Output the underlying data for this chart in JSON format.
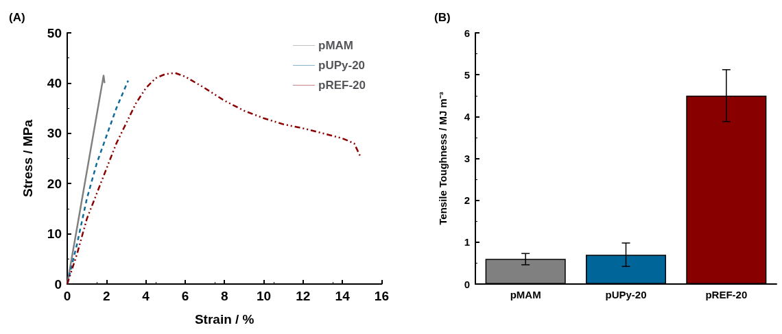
{
  "chart_data": [
    {
      "type": "line",
      "title": "(A)",
      "xlabel": "Strain / %",
      "ylabel": "Stress / MPa",
      "xlim": [
        0,
        16
      ],
      "xticks": [
        0,
        2,
        4,
        6,
        8,
        10,
        12,
        14,
        16
      ],
      "ylim": [
        0,
        50
      ],
      "yticks": [
        0,
        10,
        20,
        30,
        40,
        50
      ],
      "grid": false,
      "legend": "top right",
      "marker": "none",
      "series": [
        {
          "name": "pMAM",
          "color": "#808080",
          "line_style": "solid",
          "x": [
            0,
            1.85,
            1.9
          ],
          "values": [
            0,
            41.5,
            40
          ]
        },
        {
          "name": "pUPy-20",
          "color": "#0f6a9c",
          "line_style": "dashed",
          "x": [
            0,
            0.5,
            1,
            1.5,
            2,
            2.5,
            3.1
          ],
          "values": [
            0,
            8,
            17,
            24,
            29.5,
            35,
            40.5
          ]
        },
        {
          "name": "pREF-20",
          "color": "#8b0000",
          "line_style": "dotted",
          "x": [
            0,
            0.5,
            1,
            1.5,
            2,
            2.5,
            3,
            3.5,
            4,
            4.5,
            5,
            5.5,
            6,
            7,
            8,
            9,
            10,
            11,
            12,
            13,
            14,
            14.6,
            14.9
          ],
          "values": [
            0,
            6,
            13,
            18,
            23,
            28,
            32,
            36,
            39,
            41,
            41.8,
            42,
            41.3,
            39,
            36.5,
            34.5,
            33,
            31.8,
            31,
            30,
            29,
            28,
            25.5
          ]
        }
      ]
    },
    {
      "type": "bar",
      "title": "(B)",
      "ylabel": "Tensile Toughness / MJ m⁻³",
      "categories": [
        "pMAM",
        "pUPy-20",
        "pREF-20"
      ],
      "values": [
        0.6,
        0.7,
        4.5
      ],
      "colors": [
        "#808080",
        "#006699",
        "#880000"
      ],
      "errors": [
        [
          0.46,
          0.73
        ],
        [
          0.42,
          0.98
        ],
        [
          3.88,
          5.12
        ]
      ],
      "ylim": [
        0,
        6
      ],
      "yticks": [
        0,
        1,
        2,
        3,
        4,
        5,
        6
      ],
      "grid": false,
      "legend": false
    }
  ]
}
